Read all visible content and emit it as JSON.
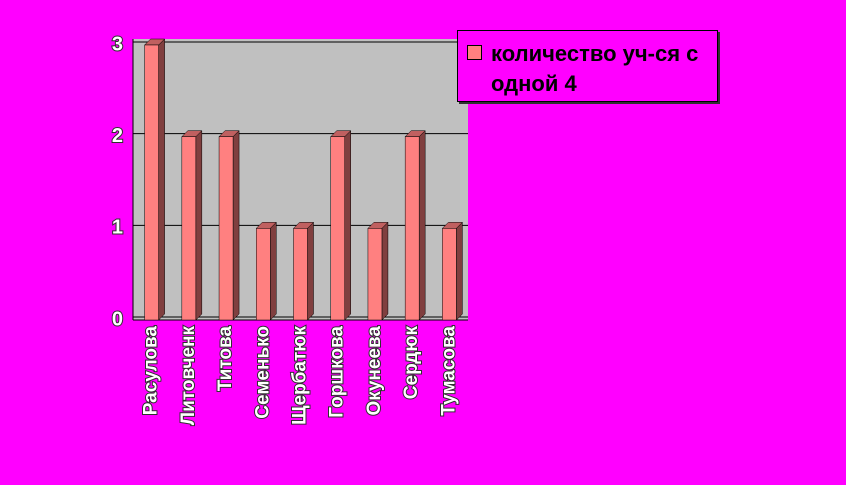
{
  "chart_data": {
    "type": "bar",
    "categories": [
      "Расулова",
      "Литовченк",
      "Титова",
      "Семенько",
      "Щербатюк",
      "Горшкова",
      "Окунеева",
      "Сердюк",
      "Тумасова"
    ],
    "series": [
      {
        "name": "количество уч-ся с одной 4",
        "color": "#ff8080",
        "values": [
          3,
          2,
          2,
          1,
          1,
          2,
          1,
          2,
          1
        ]
      }
    ],
    "ylim": [
      0,
      3
    ],
    "yticks": [
      0,
      1,
      2,
      3
    ],
    "grid": true,
    "legend": "top-right"
  }
}
